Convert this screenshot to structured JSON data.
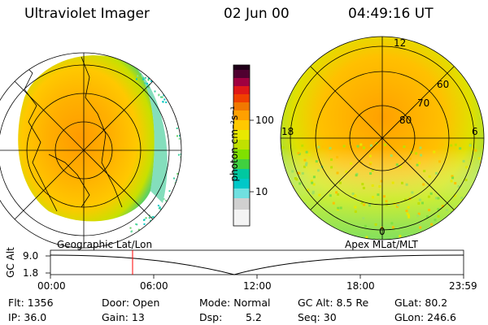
{
  "header": {
    "title": "Ultraviolet Imager",
    "date": "02 Jun 00",
    "time": "04:49:16 UT"
  },
  "colorbar": {
    "label": "photon cm⁻²s⁻¹",
    "ticks": [
      "100",
      "10"
    ],
    "scale": "log"
  },
  "left_panel": {
    "caption": "Geographic Lat/Lon"
  },
  "right_panel": {
    "caption": "Apex MLat/MLT",
    "lat_labels": [
      "60",
      "70",
      "80"
    ],
    "mlt_labels": [
      "12",
      "18",
      "6",
      "0"
    ]
  },
  "altitude_plot": {
    "ylabel": "GC Alt",
    "yticks": [
      "9.0",
      "1.8"
    ],
    "xticks": [
      "00:00",
      "06:00",
      "12:00",
      "18:00",
      "23:59"
    ],
    "marker_time": "04:49:16"
  },
  "info": {
    "flt": "Flt: 1356",
    "ip": "IP: 36.0",
    "door": "Door: Open",
    "gain": "Gain: 13",
    "mode": "Mode: Normal",
    "dsp_label": "Dsp:",
    "dsp_value": "5.2",
    "gc_alt": "GC Alt: 8.5 Re",
    "seq": "Seq: 30",
    "glat": "GLat: 80.2",
    "glon": "GLon: 246.6"
  },
  "colors": {
    "marker": "#ff0000",
    "palette": [
      "#ffffff",
      "#cfcfcf",
      "#00c8c8",
      "#00c8a0",
      "#80e000",
      "#e8e800",
      "#ffb000",
      "#f07000",
      "#e82020",
      "#c00040",
      "#300020"
    ]
  }
}
